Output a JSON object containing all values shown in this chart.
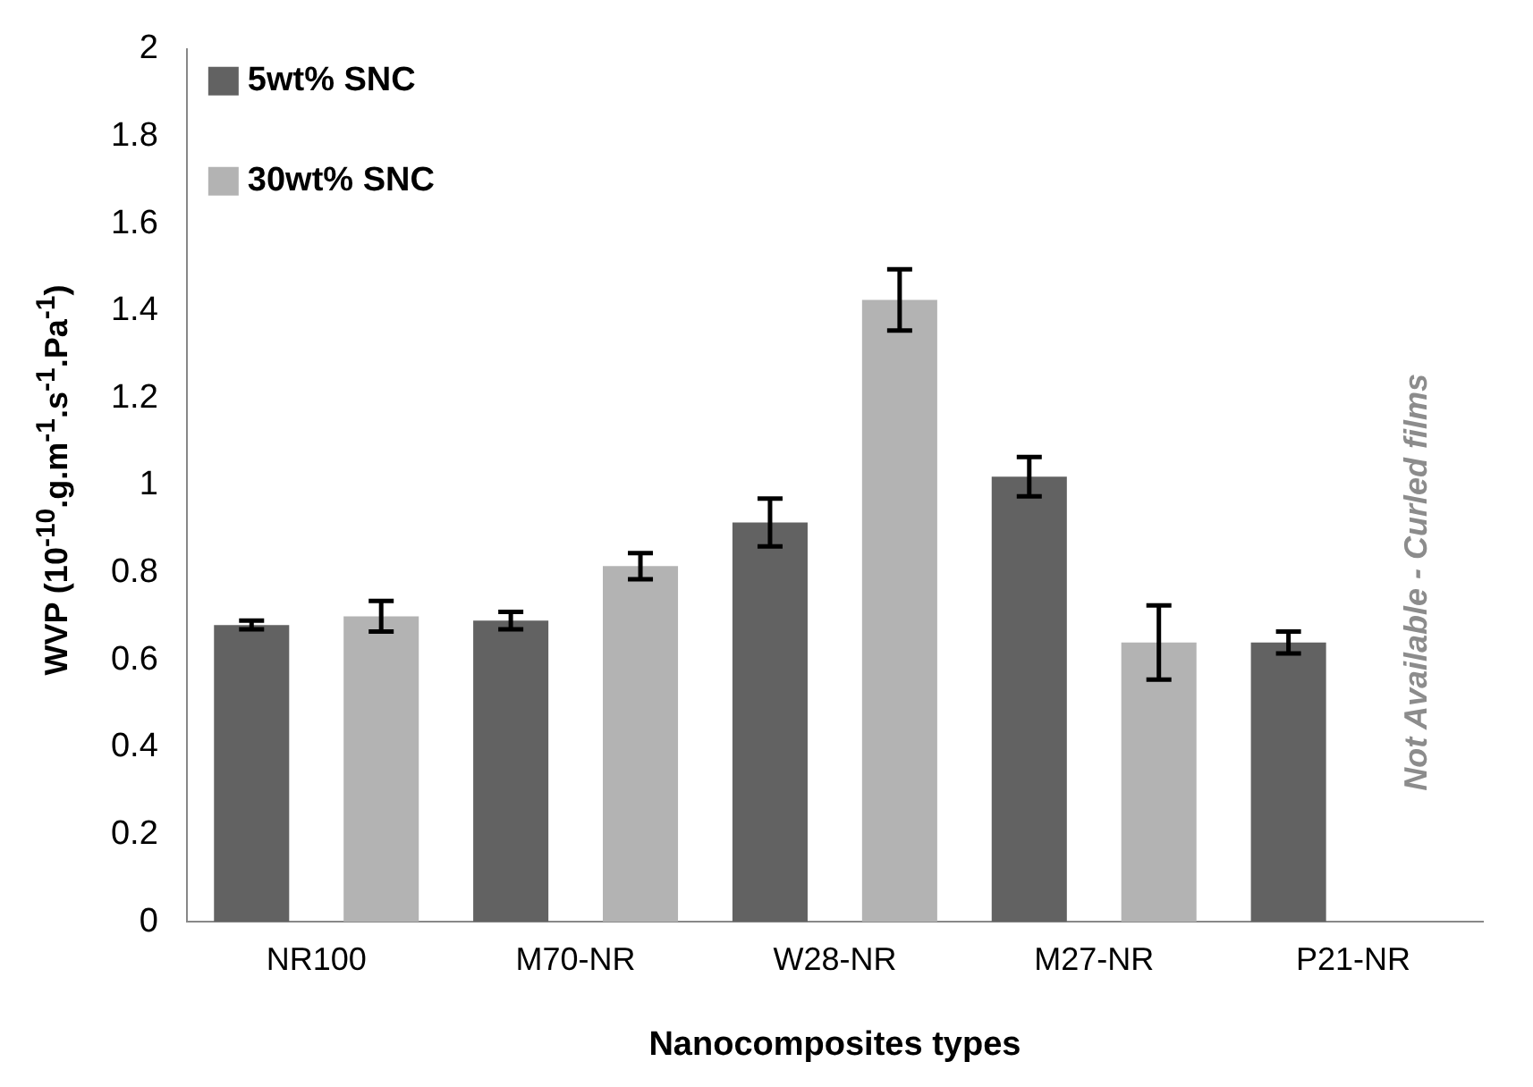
{
  "chart_data": {
    "type": "bar",
    "xlabel": "Nanocomposites types",
    "ylabel": "WVP  (10$^{-10}$.g.m$^{-1}$.s$^{-1}$.Pa$^{-1}$)",
    "categories": [
      "NR100",
      "M70-NR",
      "W28-NR",
      "M27-NR",
      "P21-NR"
    ],
    "series": [
      {
        "name": "5wt% SNC",
        "color": "#626262",
        "values": [
          0.68,
          0.69,
          0.915,
          1.02,
          0.64
        ],
        "errors": [
          0.01,
          0.02,
          0.055,
          0.045,
          0.025
        ]
      },
      {
        "name": "30wt% SNC",
        "color": "#b3b3b3",
        "values": [
          0.7,
          0.815,
          1.425,
          0.64,
          null
        ],
        "errors": [
          0.035,
          0.03,
          0.07,
          0.085,
          null
        ]
      }
    ],
    "annotations": [
      "Not Available - Curled films"
    ],
    "ylim": [
      0,
      2
    ],
    "yticks": [
      0,
      0.2,
      0.4,
      0.6,
      0.8,
      1,
      1.2,
      1.4,
      1.6,
      1.8,
      2
    ],
    "grid": false,
    "legend": "top left"
  }
}
